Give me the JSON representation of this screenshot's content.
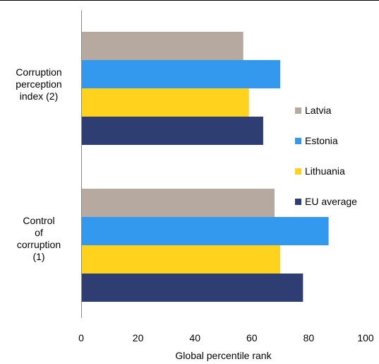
{
  "chart_data": {
    "type": "bar",
    "orientation": "horizontal",
    "categories": [
      "Corruption perception index (2)",
      "Control of corruption (1)"
    ],
    "category_display": [
      "Corruption\nperception\nindex (2)",
      "Control\nof\ncorruption\n(1)"
    ],
    "series": [
      {
        "name": "Latvia",
        "color": "#b5a9a0",
        "values": [
          57,
          68
        ]
      },
      {
        "name": "Estonia",
        "color": "#3399ee",
        "values": [
          70,
          87
        ]
      },
      {
        "name": "Lithuania",
        "color": "#ffd21e",
        "values": [
          59,
          70
        ]
      },
      {
        "name": "EU average",
        "color": "#2e3e72",
        "values": [
          64,
          78
        ]
      }
    ],
    "xlabel": "Global percentile rank",
    "ylabel": "",
    "xlim": [
      0,
      100
    ],
    "xticks": [
      "0",
      "20",
      "40",
      "60",
      "80",
      "100"
    ],
    "grid": false,
    "legend_position": "right"
  }
}
